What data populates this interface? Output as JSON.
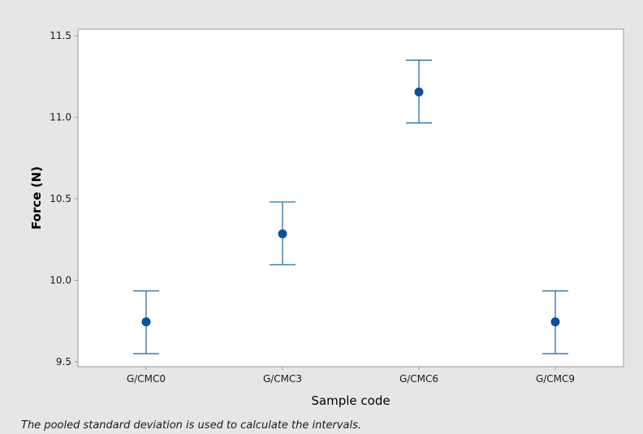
{
  "chart_data": {
    "type": "scatter",
    "subtype": "interval-plot",
    "categories": [
      "G/CMC0",
      "G/CMC3",
      "G/CMC6",
      "G/CMC9"
    ],
    "series": [
      {
        "values": [
          9.745,
          10.285,
          11.155,
          9.745
        ],
        "lower": [
          9.55,
          10.095,
          10.965,
          9.55
        ],
        "upper": [
          9.935,
          10.48,
          11.35,
          9.935
        ]
      }
    ],
    "xlabel": "Sample code",
    "ylabel": "Force (N)",
    "ylim": [
      9.47,
      11.54
    ],
    "yticks": [
      9.5,
      10.0,
      10.5,
      11.0,
      11.5
    ],
    "ytick_labels": [
      "9.5",
      "10.0",
      "10.5",
      "11.0",
      "11.5"
    ],
    "grid": false,
    "legend": "none",
    "colors": {
      "marker": "#0c4f9c",
      "interval": "#2c6db1",
      "axis": "#9a9a9a",
      "plot_background": "#ffffff",
      "figure_background": "#e6e6e6"
    }
  },
  "footnote": "The pooled standard deviation is used to calculate the intervals."
}
